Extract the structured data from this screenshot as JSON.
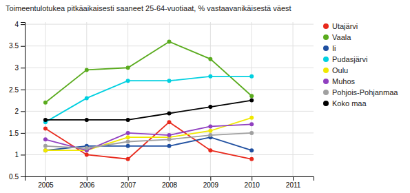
{
  "chart_data": {
    "type": "line",
    "title": "Toimeentulotukea pitkäaikaisesti saaneet 25-64-vuotiaat, % vastaavanikäisestä väest",
    "x": [
      2005,
      2006,
      2007,
      2008,
      2009,
      2010
    ],
    "series": [
      {
        "name": "Utajärvi",
        "color": "#e8291c",
        "values": [
          1.6,
          1.0,
          0.9,
          1.75,
          1.1,
          0.9
        ]
      },
      {
        "name": "Vaala",
        "color": "#5aab1e",
        "values": [
          2.2,
          2.95,
          3.0,
          3.6,
          3.2,
          2.35
        ]
      },
      {
        "name": "Ii",
        "color": "#1f4fa0",
        "values": [
          1.1,
          1.2,
          1.2,
          1.2,
          1.4,
          1.1
        ]
      },
      {
        "name": "Pudasjärvi",
        "color": "#00d0e0",
        "values": [
          1.75,
          2.3,
          2.7,
          2.7,
          2.8,
          2.8
        ]
      },
      {
        "name": "Oulu",
        "color": "#f0e800",
        "values": [
          1.1,
          1.1,
          1.4,
          1.4,
          1.55,
          1.85
        ]
      },
      {
        "name": "Muhos",
        "color": "#9040c0",
        "values": [
          1.35,
          1.1,
          1.5,
          1.45,
          1.65,
          1.7
        ]
      },
      {
        "name": "Pohjois-Pohjanmaa",
        "color": "#a0a0a0",
        "values": [
          1.2,
          1.15,
          1.3,
          1.35,
          1.45,
          1.5
        ]
      },
      {
        "name": "Koko maa",
        "color": "#000000",
        "values": [
          1.8,
          1.8,
          1.8,
          1.95,
          2.1,
          2.25
        ]
      }
    ],
    "xlim": [
      2004.5,
      2011.5
    ],
    "xticks": [
      2005,
      2006,
      2007,
      2008,
      2009,
      2010,
      2011
    ],
    "ylim": [
      0.5,
      4.05
    ],
    "yticks": [
      0.5,
      1,
      1.5,
      2,
      2.5,
      3,
      3.5,
      4
    ],
    "grid": true,
    "legend": "right",
    "marker": "circle"
  }
}
